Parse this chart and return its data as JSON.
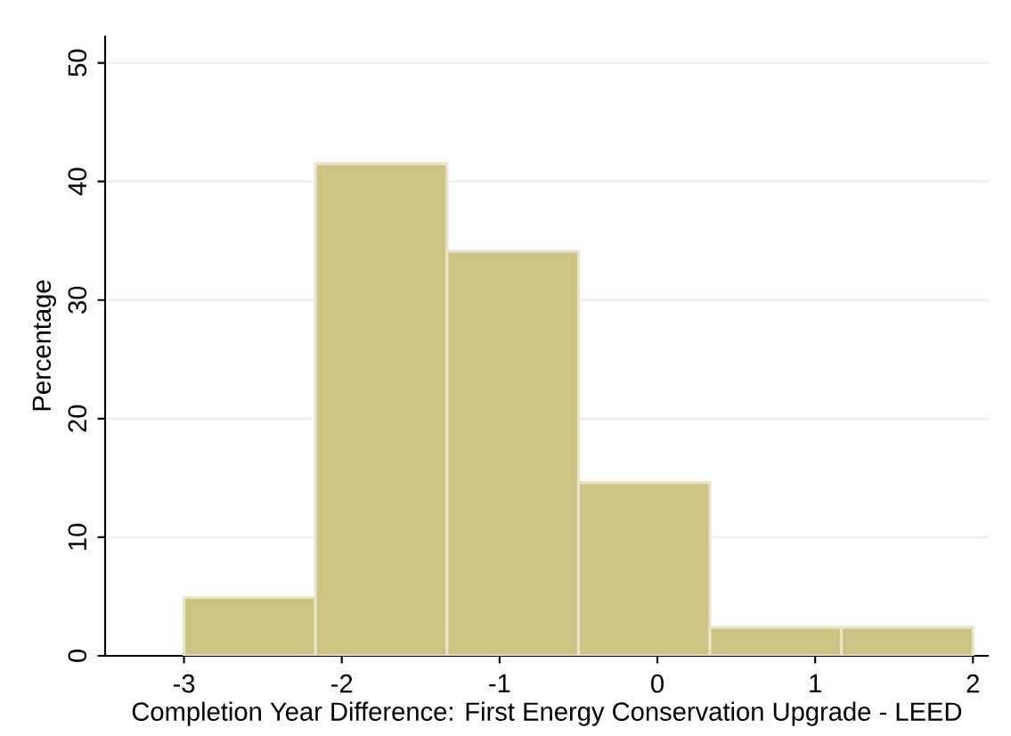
{
  "chart_data": {
    "type": "histogram",
    "xlabel": "Completion Year Difference: First Energy Conservation Upgrade - LEED",
    "ylabel": "Percentage",
    "bins": [
      -3,
      -2.1667,
      -1.3333,
      -0.5,
      0.3333,
      1.1667,
      2
    ],
    "values": [
      4.9,
      41.5,
      34.1,
      14.6,
      2.4,
      2.4
    ],
    "color": "#cdc383",
    "xlim": [
      -3.5,
      2.1
    ],
    "xticks": [
      -3,
      -2,
      -1,
      0,
      1,
      2
    ],
    "ylim": [
      0,
      52.3
    ],
    "yticks": [
      0,
      10,
      20,
      30,
      40,
      50
    ],
    "grid": "y"
  }
}
